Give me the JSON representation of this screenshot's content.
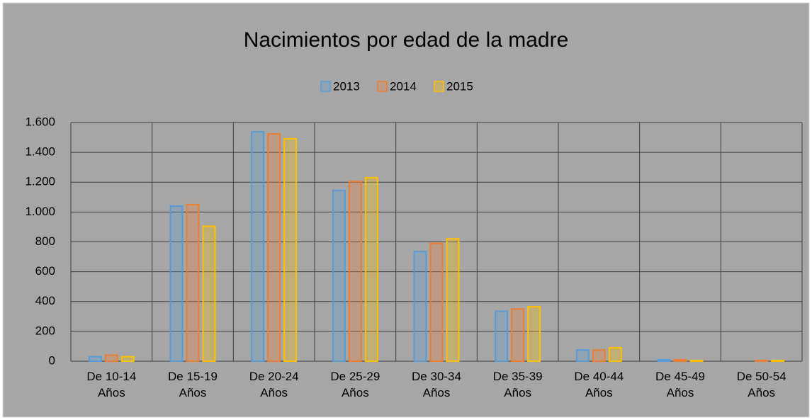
{
  "chart_data": {
    "type": "bar",
    "title": "Nacimientos por edad de la madre",
    "categories": [
      "De 10-14 Años",
      "De 15-19 Años",
      "De 20-24 Años",
      "De 25-29 Años",
      "De 30-34 Años",
      "De 35-39 Años",
      "De 40-44 Años",
      "De 45-49 Años",
      "De 50-54 Años"
    ],
    "series": [
      {
        "name": "2013",
        "color": "#5b9bd5",
        "values": [
          30,
          1040,
          1538,
          1145,
          735,
          335,
          75,
          10,
          0
        ]
      },
      {
        "name": "2014",
        "color": "#ed7d31",
        "values": [
          40,
          1050,
          1524,
          1205,
          790,
          350,
          75,
          10,
          5
        ]
      },
      {
        "name": "2015",
        "color": "#ffc000",
        "values": [
          30,
          905,
          1491,
          1230,
          820,
          365,
          90,
          5,
          5
        ]
      }
    ],
    "ylim": [
      0,
      1600
    ],
    "yticks": [
      0,
      200,
      400,
      600,
      800,
      {
        "value": 1000,
        "label": "1.000"
      },
      {
        "value": 1200,
        "label": "1.200"
      },
      {
        "value": 1400,
        "label": "1.400"
      },
      {
        "value": 1600,
        "label": "1.600"
      }
    ],
    "grid": true,
    "legend": "top"
  }
}
